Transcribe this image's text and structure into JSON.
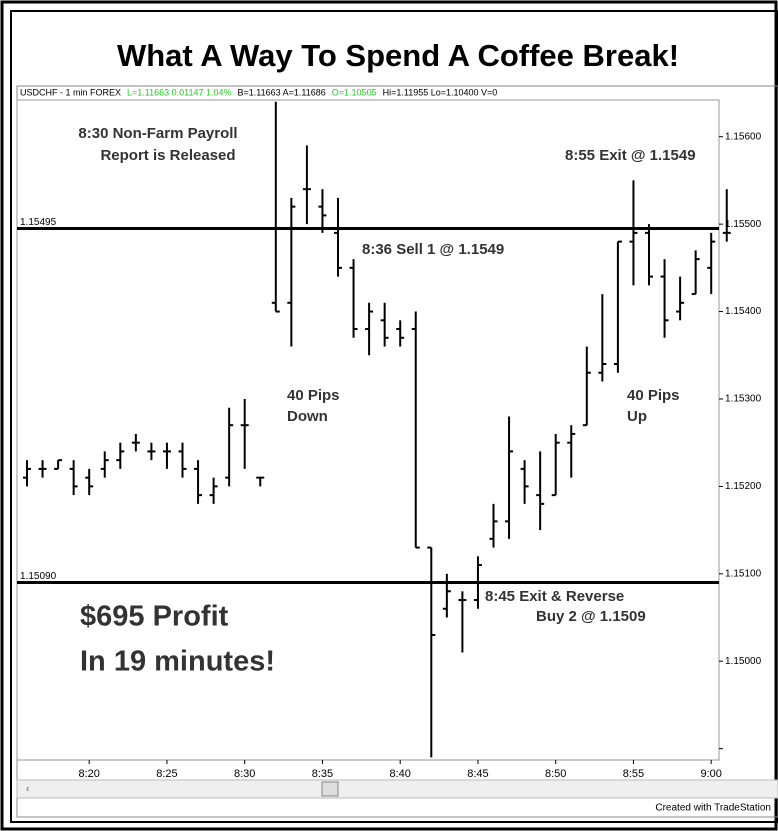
{
  "chart_data": {
    "type": "ohlc",
    "title": "What A Way To Spend A Coffee Break!",
    "info": [
      {
        "text": "USDCHF - 1 min  FOREX",
        "color": "#000000"
      },
      {
        "text": "L=1.11663  0.01147  1.04%",
        "color": "#22cc22"
      },
      {
        "text": "B=1.11663  A=1.11686",
        "color": "#000000"
      },
      {
        "text": "O=1.10505",
        "color": "#22cc22"
      },
      {
        "text": "Hi=1.11955  Lo=1.10400  V=0",
        "color": "#000000"
      }
    ],
    "categories": [
      null,
      null,
      null,
      null,
      "8:20",
      null,
      null,
      null,
      null,
      "8:25",
      null,
      null,
      null,
      null,
      "8:30",
      null,
      null,
      null,
      null,
      "8:35",
      null,
      null,
      null,
      null,
      "8:40",
      null,
      null,
      null,
      null,
      "8:45",
      null,
      null,
      null,
      null,
      "8:50",
      null,
      null,
      null,
      null,
      "8:55",
      null,
      null,
      null,
      null,
      "9:00",
      null
    ],
    "open": [
      1.1521,
      1.1522,
      1.1522,
      1.1522,
      1.1521,
      1.1522,
      1.1523,
      1.1525,
      1.1524,
      1.1524,
      1.1524,
      1.1522,
      1.1519,
      1.1521,
      1.1527,
      1.1521,
      1.1541,
      1.1541,
      1.1554,
      1.1552,
      1.1549,
      1.1545,
      1.1538,
      1.1539,
      1.1538,
      1.1538,
      1.1513,
      1.1506,
      1.1507,
      1.1507,
      1.1514,
      1.1516,
      1.1522,
      1.1519,
      1.1519,
      1.1525,
      1.1527,
      1.1533,
      1.1534,
      1.1548,
      1.1549,
      1.1544,
      1.154,
      1.1542,
      1.1545,
      1.1549
    ],
    "high": [
      1.1523,
      1.1523,
      1.1523,
      1.1523,
      1.1522,
      1.1524,
      1.1525,
      1.1526,
      1.1525,
      1.1525,
      1.1525,
      1.1523,
      1.1521,
      1.1529,
      1.153,
      1.1521,
      1.1564,
      1.1553,
      1.1559,
      1.1554,
      1.1553,
      1.1546,
      1.1541,
      1.1541,
      1.1539,
      1.154,
      1.1513,
      1.151,
      1.1508,
      1.1512,
      1.1518,
      1.1528,
      1.1523,
      1.1524,
      1.1526,
      1.1527,
      1.1536,
      1.1542,
      1.1548,
      1.1555,
      1.155,
      1.1546,
      1.1544,
      1.1547,
      1.1549,
      1.1554
    ],
    "low": [
      1.152,
      1.1521,
      1.1522,
      1.1519,
      1.1519,
      1.1521,
      1.1522,
      1.1524,
      1.1523,
      1.1522,
      1.1521,
      1.1518,
      1.1518,
      1.152,
      1.1522,
      1.152,
      1.154,
      1.1536,
      1.155,
      1.1549,
      1.1544,
      1.1537,
      1.1535,
      1.1536,
      1.1536,
      1.1513,
      1.1489,
      1.1505,
      1.1501,
      1.1506,
      1.1513,
      1.1514,
      1.1518,
      1.1515,
      1.1519,
      1.1521,
      1.1527,
      1.1532,
      1.1533,
      1.1543,
      1.1543,
      1.1537,
      1.1539,
      1.1542,
      1.1542,
      1.1548
    ],
    "close": [
      1.1522,
      1.1522,
      1.1523,
      1.152,
      1.152,
      1.1523,
      1.1524,
      1.1525,
      1.1524,
      1.1524,
      1.1522,
      1.1519,
      1.152,
      1.1527,
      1.1527,
      1.1521,
      1.154,
      1.1552,
      1.1554,
      1.1551,
      1.1545,
      1.1538,
      1.154,
      1.1537,
      1.1537,
      1.1513,
      1.1503,
      1.1508,
      1.1507,
      1.1511,
      1.1516,
      1.1524,
      1.152,
      1.1518,
      1.1525,
      1.1526,
      1.1533,
      1.1534,
      1.1548,
      1.1549,
      1.1544,
      1.1539,
      1.1541,
      1.1546,
      1.1548,
      1.1549
    ],
    "color": "#000000",
    "ylim": [
      1.14887,
      1.15642
    ],
    "yticks": [
      {
        "value": 1.149,
        "label": ""
      },
      {
        "value": 1.15,
        "label": "1.15000"
      },
      {
        "value": 1.151,
        "label": "1.15100"
      },
      {
        "value": 1.152,
        "label": "1.15200"
      },
      {
        "value": 1.153,
        "label": "1.15300"
      },
      {
        "value": 1.154,
        "label": "1.15400"
      },
      {
        "value": 1.155,
        "label": "1.15500"
      },
      {
        "value": 1.156,
        "label": "1.15600"
      }
    ],
    "hlines": [
      1.15495,
      {
        "value": 1.1509,
        "label": "1.15090"
      }
    ],
    "annotations": [
      "8:30 Non-Farm Payroll",
      "Report is Released",
      "8:55  Exit @ 1.1549",
      "8:36  Sell 1 @ 1.1549",
      "40 Pips",
      "Down",
      "40 Pips",
      "Up",
      "8:45  Exit & Reverse",
      "Buy 2 @ 1.1509",
      "$695 Profit",
      "In 19 minutes!"
    ],
    "footer": "Created with TradeStation"
  }
}
